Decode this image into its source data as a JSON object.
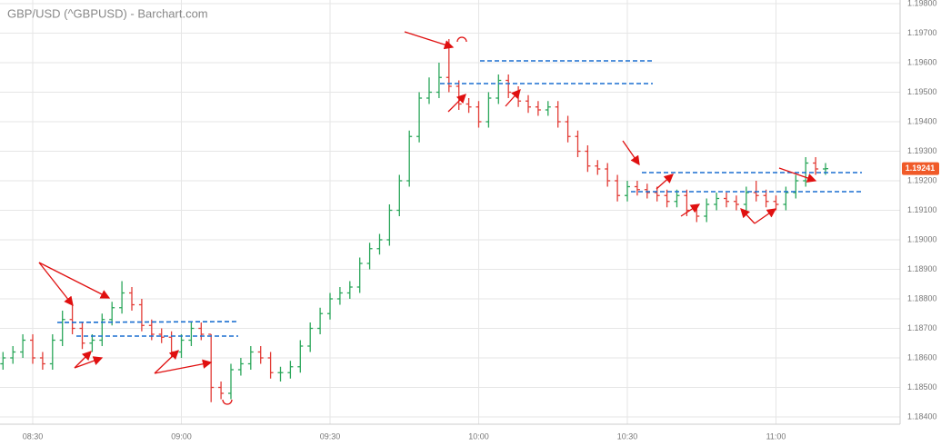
{
  "chart_data": {
    "type": "ohlc",
    "title": "GBP/USD (^GBPUSD) - Barchart.com",
    "up_color": "#2aa65a",
    "down_color": "#e23b35",
    "grid": true,
    "x": [
      "08:24",
      "08:26",
      "08:28",
      "08:30",
      "08:32",
      "08:34",
      "08:36",
      "08:38",
      "08:40",
      "08:42",
      "08:44",
      "08:46",
      "08:48",
      "08:50",
      "08:52",
      "08:54",
      "08:56",
      "08:58",
      "09:00",
      "09:02",
      "09:04",
      "09:06",
      "09:08",
      "09:10",
      "09:12",
      "09:14",
      "09:16",
      "09:18",
      "09:20",
      "09:22",
      "09:24",
      "09:26",
      "09:28",
      "09:30",
      "09:32",
      "09:34",
      "09:36",
      "09:38",
      "09:40",
      "09:42",
      "09:44",
      "09:46",
      "09:48",
      "09:50",
      "09:52",
      "09:54",
      "09:56",
      "09:58",
      "10:00",
      "10:02",
      "10:04",
      "10:06",
      "10:08",
      "10:10",
      "10:12",
      "10:14",
      "10:16",
      "10:18",
      "10:20",
      "10:22",
      "10:24",
      "10:26",
      "10:28",
      "10:30",
      "10:32",
      "10:34",
      "10:36",
      "10:38",
      "10:40",
      "10:42",
      "10:44",
      "10:46",
      "10:48",
      "10:50",
      "10:52",
      "10:54",
      "10:56",
      "10:58",
      "11:00",
      "11:02",
      "11:04",
      "11:06",
      "11:08",
      "11:10"
    ],
    "open": [
      1.1858,
      1.186,
      1.1862,
      1.1866,
      1.186,
      1.1858,
      1.1866,
      1.1873,
      1.187,
      1.1865,
      1.1866,
      1.1873,
      1.1877,
      1.1882,
      1.1878,
      1.1871,
      1.1868,
      1.1867,
      1.1862,
      1.1866,
      1.187,
      1.1868,
      1.185,
      1.1848,
      1.1856,
      1.1858,
      1.1862,
      1.186,
      1.1855,
      1.1855,
      1.1857,
      1.1864,
      1.187,
      1.1875,
      1.188,
      1.1882,
      1.1884,
      1.1892,
      1.1897,
      1.19,
      1.191,
      1.192,
      1.1935,
      1.1948,
      1.195,
      1.1955,
      1.1952,
      1.1946,
      1.1945,
      1.194,
      1.1948,
      1.1954,
      1.195,
      1.1947,
      1.1945,
      1.1944,
      1.1945,
      1.194,
      1.1935,
      1.193,
      1.1925,
      1.1924,
      1.192,
      1.1915,
      1.1918,
      1.1917,
      1.1916,
      1.1915,
      1.1913,
      1.1915,
      1.191,
      1.1908,
      1.1912,
      1.1914,
      1.1913,
      1.1912,
      1.1916,
      1.1915,
      1.1913,
      1.1912,
      1.1916,
      1.192,
      1.1926,
      1.1924
    ],
    "high": [
      1.1862,
      1.1864,
      1.1868,
      1.1868,
      1.1862,
      1.1868,
      1.1876,
      1.1878,
      1.1872,
      1.1868,
      1.1875,
      1.1879,
      1.1886,
      1.1884,
      1.188,
      1.1873,
      1.187,
      1.1869,
      1.1868,
      1.1872,
      1.1872,
      1.1868,
      1.1852,
      1.1858,
      1.186,
      1.1864,
      1.1864,
      1.1862,
      1.1857,
      1.1859,
      1.1866,
      1.1872,
      1.1877,
      1.1882,
      1.1884,
      1.1886,
      1.1894,
      1.1899,
      1.1902,
      1.1912,
      1.1922,
      1.1937,
      1.195,
      1.1955,
      1.196,
      1.1968,
      1.1954,
      1.1948,
      1.1947,
      1.195,
      1.1956,
      1.1956,
      1.1952,
      1.1949,
      1.1947,
      1.1947,
      1.1947,
      1.1942,
      1.1937,
      1.1932,
      1.1927,
      1.1926,
      1.1922,
      1.192,
      1.192,
      1.1919,
      1.1918,
      1.1917,
      1.1917,
      1.1917,
      1.1912,
      1.1914,
      1.1916,
      1.1916,
      1.1915,
      1.1918,
      1.192,
      1.1917,
      1.1915,
      1.1918,
      1.1922,
      1.1928,
      1.1928,
      1.1926
    ],
    "low": [
      1.1856,
      1.1858,
      1.186,
      1.1858,
      1.1856,
      1.1856,
      1.1864,
      1.1868,
      1.1863,
      1.1862,
      1.1864,
      1.1871,
      1.1875,
      1.1876,
      1.1869,
      1.1866,
      1.1865,
      1.186,
      1.186,
      1.1864,
      1.1866,
      1.1845,
      1.1846,
      1.1846,
      1.1854,
      1.1856,
      1.1858,
      1.1853,
      1.1852,
      1.1853,
      1.1855,
      1.1862,
      1.1868,
      1.1873,
      1.1878,
      1.188,
      1.1882,
      1.189,
      1.1895,
      1.1898,
      1.1908,
      1.1918,
      1.1933,
      1.1946,
      1.1948,
      1.195,
      1.1944,
      1.1943,
      1.1938,
      1.1938,
      1.1946,
      1.1948,
      1.1945,
      1.1943,
      1.1942,
      1.1942,
      1.1938,
      1.1933,
      1.1928,
      1.1923,
      1.1922,
      1.1918,
      1.1913,
      1.1913,
      1.1915,
      1.1914,
      1.1913,
      1.1911,
      1.1911,
      1.1908,
      1.1906,
      1.1906,
      1.191,
      1.1911,
      1.191,
      1.191,
      1.1913,
      1.1911,
      1.191,
      1.191,
      1.1914,
      1.1918,
      1.1922,
      1.1922
    ],
    "close": [
      1.186,
      1.1862,
      1.1866,
      1.186,
      1.1858,
      1.1866,
      1.1873,
      1.187,
      1.1865,
      1.1866,
      1.1873,
      1.1877,
      1.1882,
      1.1878,
      1.1871,
      1.1868,
      1.1867,
      1.1862,
      1.1866,
      1.187,
      1.1868,
      1.185,
      1.1848,
      1.1856,
      1.1858,
      1.1862,
      1.186,
      1.1855,
      1.1855,
      1.1857,
      1.1864,
      1.187,
      1.1875,
      1.188,
      1.1882,
      1.1884,
      1.1892,
      1.1897,
      1.19,
      1.191,
      1.192,
      1.1935,
      1.1948,
      1.195,
      1.1955,
      1.1952,
      1.1946,
      1.1945,
      1.194,
      1.1948,
      1.1954,
      1.195,
      1.1947,
      1.1945,
      1.1944,
      1.1945,
      1.194,
      1.1935,
      1.193,
      1.1925,
      1.1924,
      1.192,
      1.1915,
      1.1918,
      1.1917,
      1.1916,
      1.1915,
      1.1913,
      1.1915,
      1.191,
      1.1908,
      1.1912,
      1.1914,
      1.1913,
      1.1912,
      1.1916,
      1.1915,
      1.1913,
      1.1912,
      1.1916,
      1.192,
      1.1926,
      1.1924,
      1.19241
    ],
    "xticks": [
      "08:30",
      "09:00",
      "09:30",
      "10:00",
      "10:30",
      "11:00"
    ],
    "ylim": [
      1.184,
      1.198
    ],
    "yticks": [
      {
        "value": 1.184,
        "label": "1.18400"
      },
      {
        "value": 1.185,
        "label": "1.18500"
      },
      {
        "value": 1.186,
        "label": "1.18600"
      },
      {
        "value": 1.187,
        "label": "1.18700"
      },
      {
        "value": 1.188,
        "label": "1.18800"
      },
      {
        "value": 1.189,
        "label": "1.18900"
      },
      {
        "value": 1.19,
        "label": "1.19000"
      },
      {
        "value": 1.191,
        "label": "1.19100"
      },
      {
        "value": 1.192,
        "label": "1.19200"
      },
      {
        "value": 1.193,
        "label": "1.19300"
      },
      {
        "value": 1.194,
        "label": "1.19400"
      },
      {
        "value": 1.195,
        "label": "1.19500"
      },
      {
        "value": 1.196,
        "label": "1.19600"
      },
      {
        "value": 1.197,
        "label": "1.19700"
      },
      {
        "value": 1.198,
        "label": "1.19800"
      }
    ],
    "last_price": 1.19241,
    "last_price_color": "#f05a28"
  }
}
